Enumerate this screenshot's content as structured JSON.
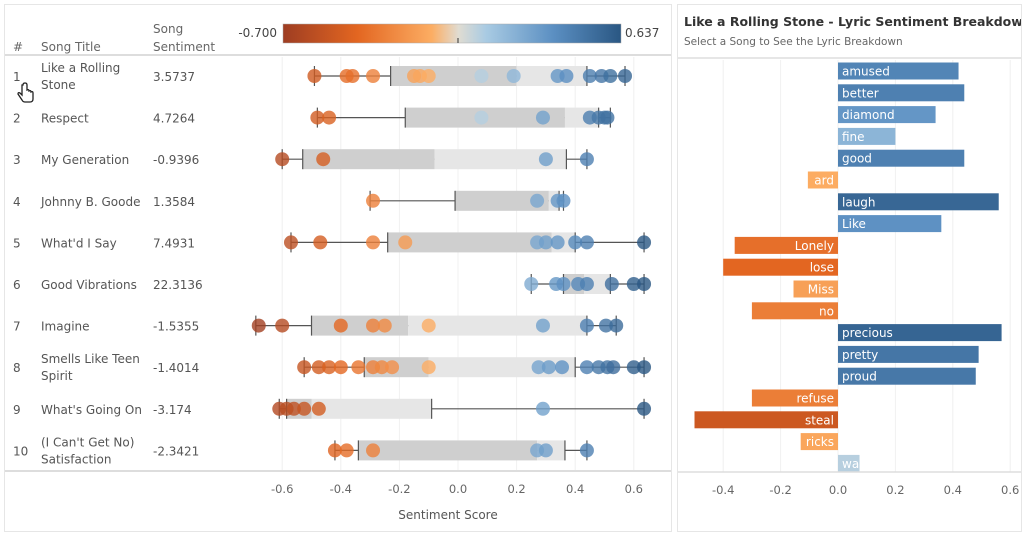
{
  "left_panel": {
    "headers": {
      "rank": "#",
      "title": "Song Title",
      "sentiment_line1": "Song",
      "sentiment_line2": "Sentiment"
    },
    "legend": {
      "min_label": "-0.700",
      "max_label": "0.637"
    },
    "xlabel": "Sentiment Score",
    "ticks": [
      "-0.6",
      "-0.4",
      "-0.2",
      "0.0",
      "0.2",
      "0.4",
      "0.6"
    ]
  },
  "right_panel": {
    "title": "Like a Rolling Stone - Lyric Sentiment Breakdown",
    "subtitle": "Select a Song to See the Lyric Breakdown",
    "ticks": [
      "-0.4",
      "-0.2",
      "0.0",
      "0.2",
      "0.4",
      "0.6"
    ]
  },
  "colors": {
    "neg_dark": "#9e3d22",
    "neg_mid": "#e36621",
    "neg_light": "#fcad63",
    "neutral": "#e0dcd2",
    "pos_light": "#a9cbe3",
    "pos_mid": "#5b8fc2",
    "pos_dark": "#2a5783"
  },
  "chart_data": [
    {
      "type": "box-plot-strip",
      "xlabel": "Sentiment Score",
      "xlim": [
        -0.7,
        0.66
      ],
      "color_scale": [
        -0.7,
        0.637
      ],
      "songs": [
        {
          "rank": "1",
          "title_line1": "Like a Rolling",
          "title_line2": "Stone",
          "sentiment": "3.5737",
          "box": [
            -0.49,
            -0.23,
            0.2,
            0.44,
            0.57
          ],
          "points": [
            -0.49,
            -0.38,
            -0.36,
            -0.29,
            -0.15,
            -0.13,
            -0.1,
            0.08,
            0.19,
            0.34,
            0.37,
            0.45,
            0.49,
            0.52,
            0.57
          ]
        },
        {
          "rank": "2",
          "title_line1": "Respect",
          "title_line2": "",
          "sentiment": "4.7264",
          "box": [
            -0.48,
            -0.18,
            0.365,
            0.48,
            0.52
          ],
          "points": [
            -0.48,
            -0.44,
            0.08,
            0.29,
            0.45,
            0.48,
            0.5,
            0.51
          ]
        },
        {
          "rank": "3",
          "title_line1": "My Generation",
          "title_line2": "",
          "sentiment": "-0.9396",
          "box": [
            -0.6,
            -0.53,
            -0.08,
            0.37,
            0.44
          ],
          "points": [
            -0.6,
            -0.46,
            0.3,
            0.44
          ]
        },
        {
          "rank": "4",
          "title_line1": "Johnny B. Goode",
          "title_line2": "",
          "sentiment": "1.3584",
          "box": [
            -0.3,
            -0.01,
            0.31,
            0.345,
            0.36
          ],
          "points": [
            -0.29,
            0.27,
            0.34,
            0.36
          ]
        },
        {
          "rank": "5",
          "title_line1": "What'd I Say",
          "title_line2": "",
          "sentiment": "7.4931",
          "box": [
            -0.57,
            -0.24,
            0.32,
            0.4,
            0.635
          ],
          "points": [
            -0.57,
            -0.47,
            -0.29,
            -0.18,
            0.27,
            0.3,
            0.34,
            0.4,
            0.44,
            0.635
          ]
        },
        {
          "rank": "6",
          "title_line1": "Good Vibrations",
          "title_line2": "",
          "sentiment": "22.3136",
          "box": [
            0.25,
            0.36,
            0.43,
            0.52,
            0.635
          ],
          "points": [
            0.25,
            0.335,
            0.36,
            0.41,
            0.44,
            0.525,
            0.6,
            0.635
          ]
        },
        {
          "rank": "7",
          "title_line1": "Imagine",
          "title_line2": "",
          "sentiment": "-1.5355",
          "box": [
            -0.69,
            -0.5,
            -0.17,
            0.44,
            0.54
          ],
          "points": [
            -0.68,
            -0.6,
            -0.4,
            -0.29,
            -0.25,
            -0.1,
            0.29,
            0.44,
            0.505,
            0.54
          ]
        },
        {
          "rank": "8",
          "title_line1": "Smells Like Teen",
          "title_line2": "Spirit",
          "sentiment": "-1.4014",
          "box": [
            -0.525,
            -0.32,
            -0.1,
            0.4,
            0.635
          ],
          "points": [
            -0.525,
            -0.475,
            -0.44,
            -0.4,
            -0.34,
            -0.29,
            -0.26,
            -0.225,
            -0.1,
            0.275,
            0.31,
            0.355,
            0.44,
            0.48,
            0.51,
            0.53,
            0.6,
            0.635
          ]
        },
        {
          "rank": "9",
          "title_line1": "What's Going On",
          "title_line2": "",
          "sentiment": "-3.174",
          "box": [
            -0.61,
            -0.585,
            -0.5,
            -0.09,
            0.635
          ],
          "points": [
            -0.61,
            -0.585,
            -0.56,
            -0.525,
            -0.475,
            0.29,
            0.635
          ]
        },
        {
          "rank": "10",
          "title_line1": "(I Can't Get No)",
          "title_line2": "Satisfaction",
          "sentiment": "-2.3421",
          "box": [
            -0.42,
            -0.34,
            0.27,
            0.365,
            0.44
          ],
          "points": [
            -0.42,
            -0.38,
            -0.29,
            0.27,
            0.3,
            0.44
          ]
        }
      ]
    },
    {
      "type": "bar",
      "orientation": "horizontal",
      "title": "Like a Rolling Stone - Lyric Sentiment Breakdown",
      "xlim": [
        -0.6,
        0.64
      ],
      "categories": [
        "amused",
        "better",
        "diamond",
        "fine",
        "good",
        "ard",
        "laugh",
        "Like",
        "Lonely",
        "lose",
        "Miss",
        "no",
        "precious",
        "pretty",
        "proud",
        "refuse",
        "steal",
        "ricks",
        "wa"
      ],
      "values": [
        0.42,
        0.44,
        0.34,
        0.2,
        0.44,
        -0.105,
        0.56,
        0.36,
        -0.36,
        -0.4,
        -0.155,
        -0.3,
        0.57,
        0.49,
        0.48,
        -0.3,
        -0.5,
        -0.13,
        0.075
      ]
    }
  ]
}
